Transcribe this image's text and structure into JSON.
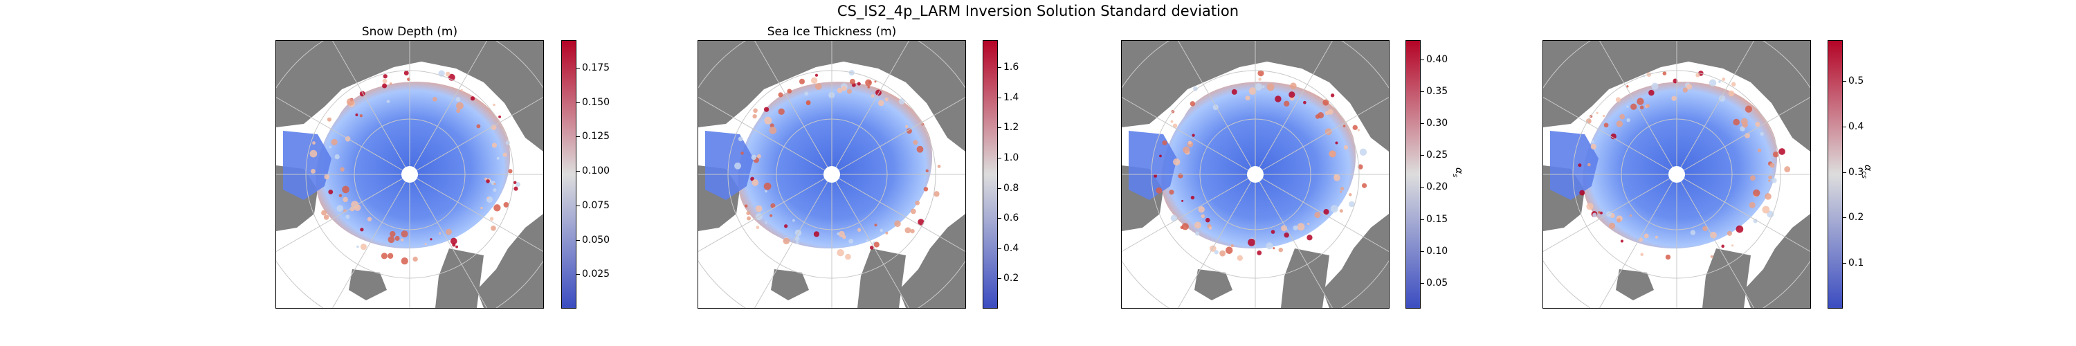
{
  "figure": {
    "title": "CS_IS2_4p_LARM Inversion Solution Standard deviation"
  },
  "colors": {
    "land": "#808080",
    "low": "#3b4cc0",
    "mid": "#dddddd",
    "high": "#b40426",
    "ocean": "#ffffff",
    "grid": "#c8c8c8"
  },
  "panels": [
    {
      "title": "Snow Depth (m)",
      "colorbar_label": "",
      "ticks": [
        "0.025",
        "0.050",
        "0.075",
        "0.100",
        "0.125",
        "0.150",
        "0.175"
      ],
      "tick_values": [
        0.025,
        0.05,
        0.075,
        0.1,
        0.125,
        0.15,
        0.175
      ],
      "range": [
        0.0,
        0.195
      ]
    },
    {
      "title": "Sea Ice Thickness (m)",
      "colorbar_label": "",
      "ticks": [
        "0.2",
        "0.4",
        "0.6",
        "0.8",
        "1.0",
        "1.2",
        "1.4",
        "1.6"
      ],
      "tick_values": [
        0.2,
        0.4,
        0.6,
        0.8,
        1.0,
        1.2,
        1.4,
        1.6
      ],
      "range": [
        0.0,
        1.78
      ]
    },
    {
      "title": "",
      "colorbar_label": "α_s",
      "ticks": [
        "0.05",
        "0.10",
        "0.15",
        "0.20",
        "0.25",
        "0.30",
        "0.35",
        "0.40"
      ],
      "tick_values": [
        0.05,
        0.1,
        0.15,
        0.2,
        0.25,
        0.3,
        0.35,
        0.4
      ],
      "range": [
        0.01,
        0.43
      ]
    },
    {
      "title": "",
      "colorbar_label": "α_cs",
      "ticks": [
        "0.1",
        "0.2",
        "0.3",
        "0.4",
        "0.5"
      ],
      "tick_values": [
        0.1,
        0.2,
        0.3,
        0.4,
        0.5
      ],
      "range": [
        0.0,
        0.59
      ]
    }
  ]
}
